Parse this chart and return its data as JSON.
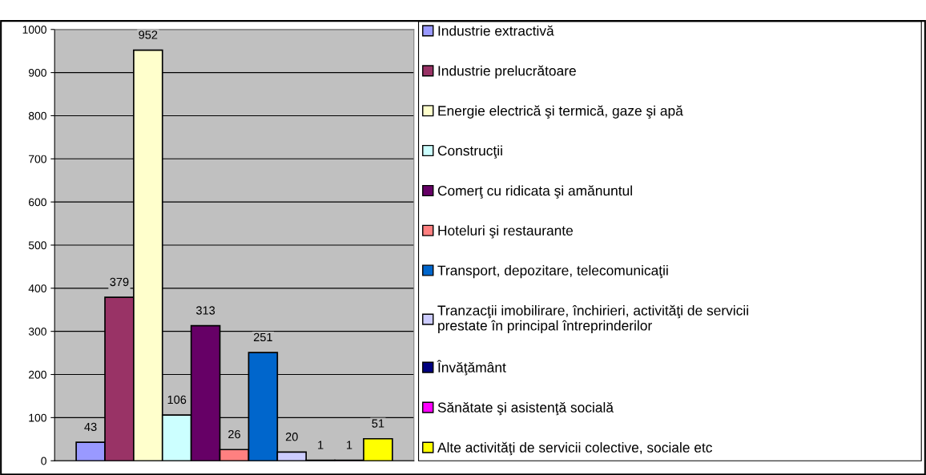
{
  "chart_data": {
    "type": "bar",
    "categories": [
      null
    ],
    "series": [
      {
        "name": "Industrie extractivă",
        "color": "#9999ff",
        "values": [
          43
        ]
      },
      {
        "name": "Industrie prelucrătoare",
        "color": "#993366",
        "values": [
          379
        ]
      },
      {
        "name": "Energie electrică şi termică, gaze şi apă",
        "color": "#ffffcc",
        "values": [
          952
        ]
      },
      {
        "name": "Construcţii",
        "color": "#ccffff",
        "values": [
          106
        ]
      },
      {
        "name": "Comerţ cu ridicata şi amănuntul",
        "color": "#660066",
        "values": [
          313
        ]
      },
      {
        "name": "Hoteluri şi restaurante",
        "color": "#ff8080",
        "values": [
          26
        ]
      },
      {
        "name": "Transport, depozitare, telecomunicaţii",
        "color": "#0066cc",
        "values": [
          251
        ]
      },
      {
        "name": "Tranzacţii imobilirare, închirieri, activităţi de servicii\nprestate în principal întreprinderilor",
        "color": "#ccccff",
        "values": [
          20
        ]
      },
      {
        "name": "Învăţământ",
        "color": "#000080",
        "values": [
          1
        ]
      },
      {
        "name": "Sănătate şi asistenţă socială",
        "color": "#ff00ff",
        "values": [
          1
        ]
      },
      {
        "name": "Alte activităţi de servicii colective, sociale etc",
        "color": "#ffff00",
        "values": [
          51
        ]
      }
    ],
    "ylim": [
      0,
      1000
    ],
    "yticks": [
      0,
      100,
      200,
      300,
      400,
      500,
      600,
      700,
      800,
      900,
      1000
    ],
    "grid": "y",
    "legend": "right",
    "data_labels": true
  }
}
